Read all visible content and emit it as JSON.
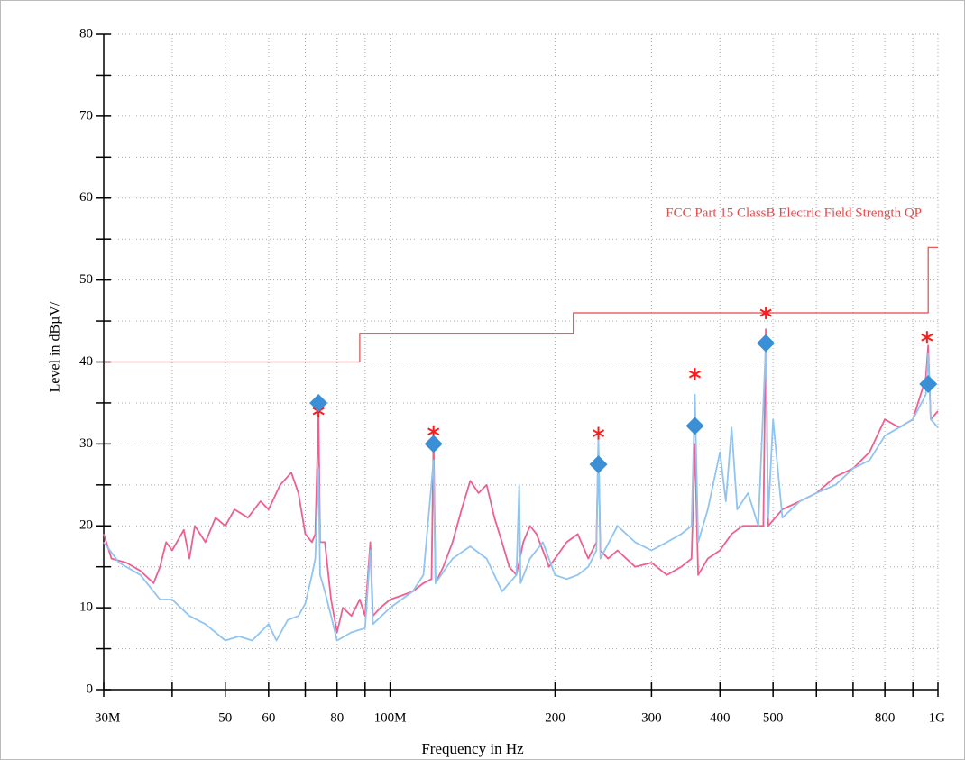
{
  "chart_data": {
    "type": "line",
    "xlabel": "Frequency in Hz",
    "ylabel": "Level in dBµV/",
    "xscale": "log",
    "xlim": [
      30000000.0,
      1000000000.0
    ],
    "ylim": [
      0,
      80
    ],
    "grid": true,
    "xticks": [
      {
        "value": 30000000.0,
        "label": "30M"
      },
      {
        "value": 50000000.0,
        "label": "50"
      },
      {
        "value": 60000000.0,
        "label": "60"
      },
      {
        "value": 80000000.0,
        "label": "80"
      },
      {
        "value": 100000000.0,
        "label": "100M"
      },
      {
        "value": 200000000.0,
        "label": "200"
      },
      {
        "value": 300000000.0,
        "label": "300"
      },
      {
        "value": 400000000.0,
        "label": "400"
      },
      {
        "value": 500000000.0,
        "label": "500"
      },
      {
        "value": 800000000.0,
        "label": "800"
      },
      {
        "value": 1000000000.0,
        "label": "1G"
      }
    ],
    "xminorticks": [
      40000000.0,
      70000000.0,
      90000000.0,
      600000000.0,
      700000000.0,
      900000000.0
    ],
    "yticks": [
      0,
      10,
      20,
      30,
      40,
      50,
      60,
      70,
      80
    ],
    "yminorticks": [
      5,
      15,
      25,
      35,
      45,
      55,
      65,
      75
    ],
    "series": [
      {
        "style": "line",
        "color": "#ef5f8f",
        "x": [
          30000000.0,
          31000000.0,
          33000000.0,
          35000000.0,
          37000000.0,
          38000000.0,
          39000000.0,
          40000000.0,
          42000000.0,
          43000000.0,
          44000000.0,
          46000000.0,
          48000000.0,
          50000000.0,
          52000000.0,
          55000000.0,
          58000000.0,
          60000000.0,
          63000000.0,
          66000000.0,
          68000000.0,
          70000000.0,
          72000000.0,
          73000000.0,
          74000000.0,
          74500000.0,
          76000000.0,
          78000000.0,
          80000000.0,
          82000000.0,
          85000000.0,
          88000000.0,
          90000000.0,
          92000000.0,
          93000000.0,
          96000000.0,
          100000000.0,
          105000000.0,
          110000000.0,
          115000000.0,
          119000000.0,
          120000000.0,
          121000000.0,
          125000000.0,
          130000000.0,
          135000000.0,
          140000000.0,
          145000000.0,
          150000000.0,
          155000000.0,
          160000000.0,
          165000000.0,
          170000000.0,
          175000000.0,
          180000000.0,
          185000000.0,
          190000000.0,
          195000000.0,
          200000000.0,
          210000000.0,
          220000000.0,
          230000000.0,
          238000000.0,
          240000000.0,
          242000000.0,
          250000000.0,
          260000000.0,
          280000000.0,
          300000000.0,
          320000000.0,
          340000000.0,
          355000000.0,
          360000000.0,
          365000000.0,
          380000000.0,
          400000000.0,
          420000000.0,
          440000000.0,
          460000000.0,
          480000000.0,
          485000000.0,
          490000000.0,
          520000000.0,
          560000000.0,
          600000000.0,
          650000000.0,
          700000000.0,
          750000000.0,
          800000000.0,
          850000000.0,
          900000000.0,
          950000000.0,
          960000000.0,
          970000000.0,
          1000000000.0
        ],
        "values": [
          19,
          16,
          15.5,
          14.5,
          13,
          15,
          18,
          17,
          19.5,
          16,
          20,
          18,
          21,
          20,
          22,
          21,
          23,
          22,
          25,
          26.5,
          24,
          19,
          18,
          19,
          34,
          18,
          18,
          11,
          7,
          10,
          9,
          11,
          9,
          18,
          9,
          10,
          11,
          11.5,
          12,
          13,
          13.5,
          31,
          13,
          15,
          18,
          22,
          25.5,
          24,
          25,
          21,
          18,
          15,
          14,
          18,
          20,
          19,
          17,
          15,
          16,
          18,
          19,
          16,
          18,
          30,
          17,
          16,
          17,
          15,
          15.5,
          14,
          15,
          16,
          30,
          14,
          16,
          17,
          19,
          20,
          20,
          20,
          44,
          20,
          22,
          23,
          24,
          26,
          27,
          29,
          33,
          32,
          33,
          38,
          42,
          33,
          34
        ]
      },
      {
        "style": "line",
        "color": "#90c4f2",
        "x": [
          30000000.0,
          32000000.0,
          35000000.0,
          38000000.0,
          40000000.0,
          43000000.0,
          46000000.0,
          50000000.0,
          53000000.0,
          56000000.0,
          60000000.0,
          62000000.0,
          65000000.0,
          68000000.0,
          70000000.0,
          72000000.0,
          73000000.0,
          74000000.0,
          74500000.0,
          76000000.0,
          78000000.0,
          80000000.0,
          85000000.0,
          90000000.0,
          92000000.0,
          93000000.0,
          100000000.0,
          110000000.0,
          115000000.0,
          120000000.0,
          121000000.0,
          130000000.0,
          140000000.0,
          150000000.0,
          160000000.0,
          170000000.0,
          172000000.0,
          173000000.0,
          180000000.0,
          190000000.0,
          200000000.0,
          210000000.0,
          220000000.0,
          230000000.0,
          238000000.0,
          240000000.0,
          242000000.0,
          260000000.0,
          280000000.0,
          300000000.0,
          320000000.0,
          340000000.0,
          355000000.0,
          360000000.0,
          365000000.0,
          380000000.0,
          400000000.0,
          410000000.0,
          420000000.0,
          430000000.0,
          450000000.0,
          470000000.0,
          485000000.0,
          490000000.0,
          500000000.0,
          520000000.0,
          560000000.0,
          600000000.0,
          650000000.0,
          700000000.0,
          750000000.0,
          800000000.0,
          850000000.0,
          900000000.0,
          950000000.0,
          960000000.0,
          970000000.0,
          1000000000.0
        ],
        "values": [
          18,
          15.5,
          14,
          11,
          11,
          9,
          8,
          6,
          6.5,
          6,
          8,
          6,
          8.5,
          9,
          10.5,
          14,
          16,
          27,
          14,
          12,
          9,
          6,
          7,
          7.5,
          17,
          8,
          10,
          12,
          14,
          28,
          13,
          16,
          17.5,
          16,
          12,
          14,
          25,
          13,
          16,
          18,
          14,
          13.5,
          14,
          15,
          17,
          31,
          16,
          20,
          18,
          17,
          18,
          19,
          20,
          36,
          18,
          22,
          29,
          23,
          32,
          22,
          24,
          20,
          42,
          21,
          33,
          21,
          23,
          24,
          25,
          27,
          28,
          31,
          32,
          33,
          36,
          41,
          33,
          32
        ]
      },
      {
        "style": "line",
        "color": "#e8484a",
        "name": "FCC Part 15 ClassB Electric Field Strength QP",
        "x": [
          30000000.0,
          88000000.0,
          88000000.0,
          216000000.0,
          216000000.0,
          960000000.0,
          960000000.0,
          1000000000.0
        ],
        "values": [
          40,
          40,
          43.5,
          43.5,
          46,
          46,
          54,
          54
        ]
      },
      {
        "style": "asterisk",
        "color": "#ff1a1a",
        "x": [
          74000000.0,
          120000000.0,
          240000000.0,
          360000000.0,
          485000000.0,
          955000000.0
        ],
        "values": [
          34,
          31.5,
          31.3,
          38.5,
          46,
          43
        ]
      },
      {
        "style": "diamond",
        "color": "#3a8fd6",
        "x": [
          74000000.0,
          120000000.0,
          240000000.0,
          360000000.0,
          485000000.0,
          960000000.0
        ],
        "values": [
          35,
          30,
          27.5,
          32.2,
          42.3,
          37.3
        ]
      }
    ]
  }
}
